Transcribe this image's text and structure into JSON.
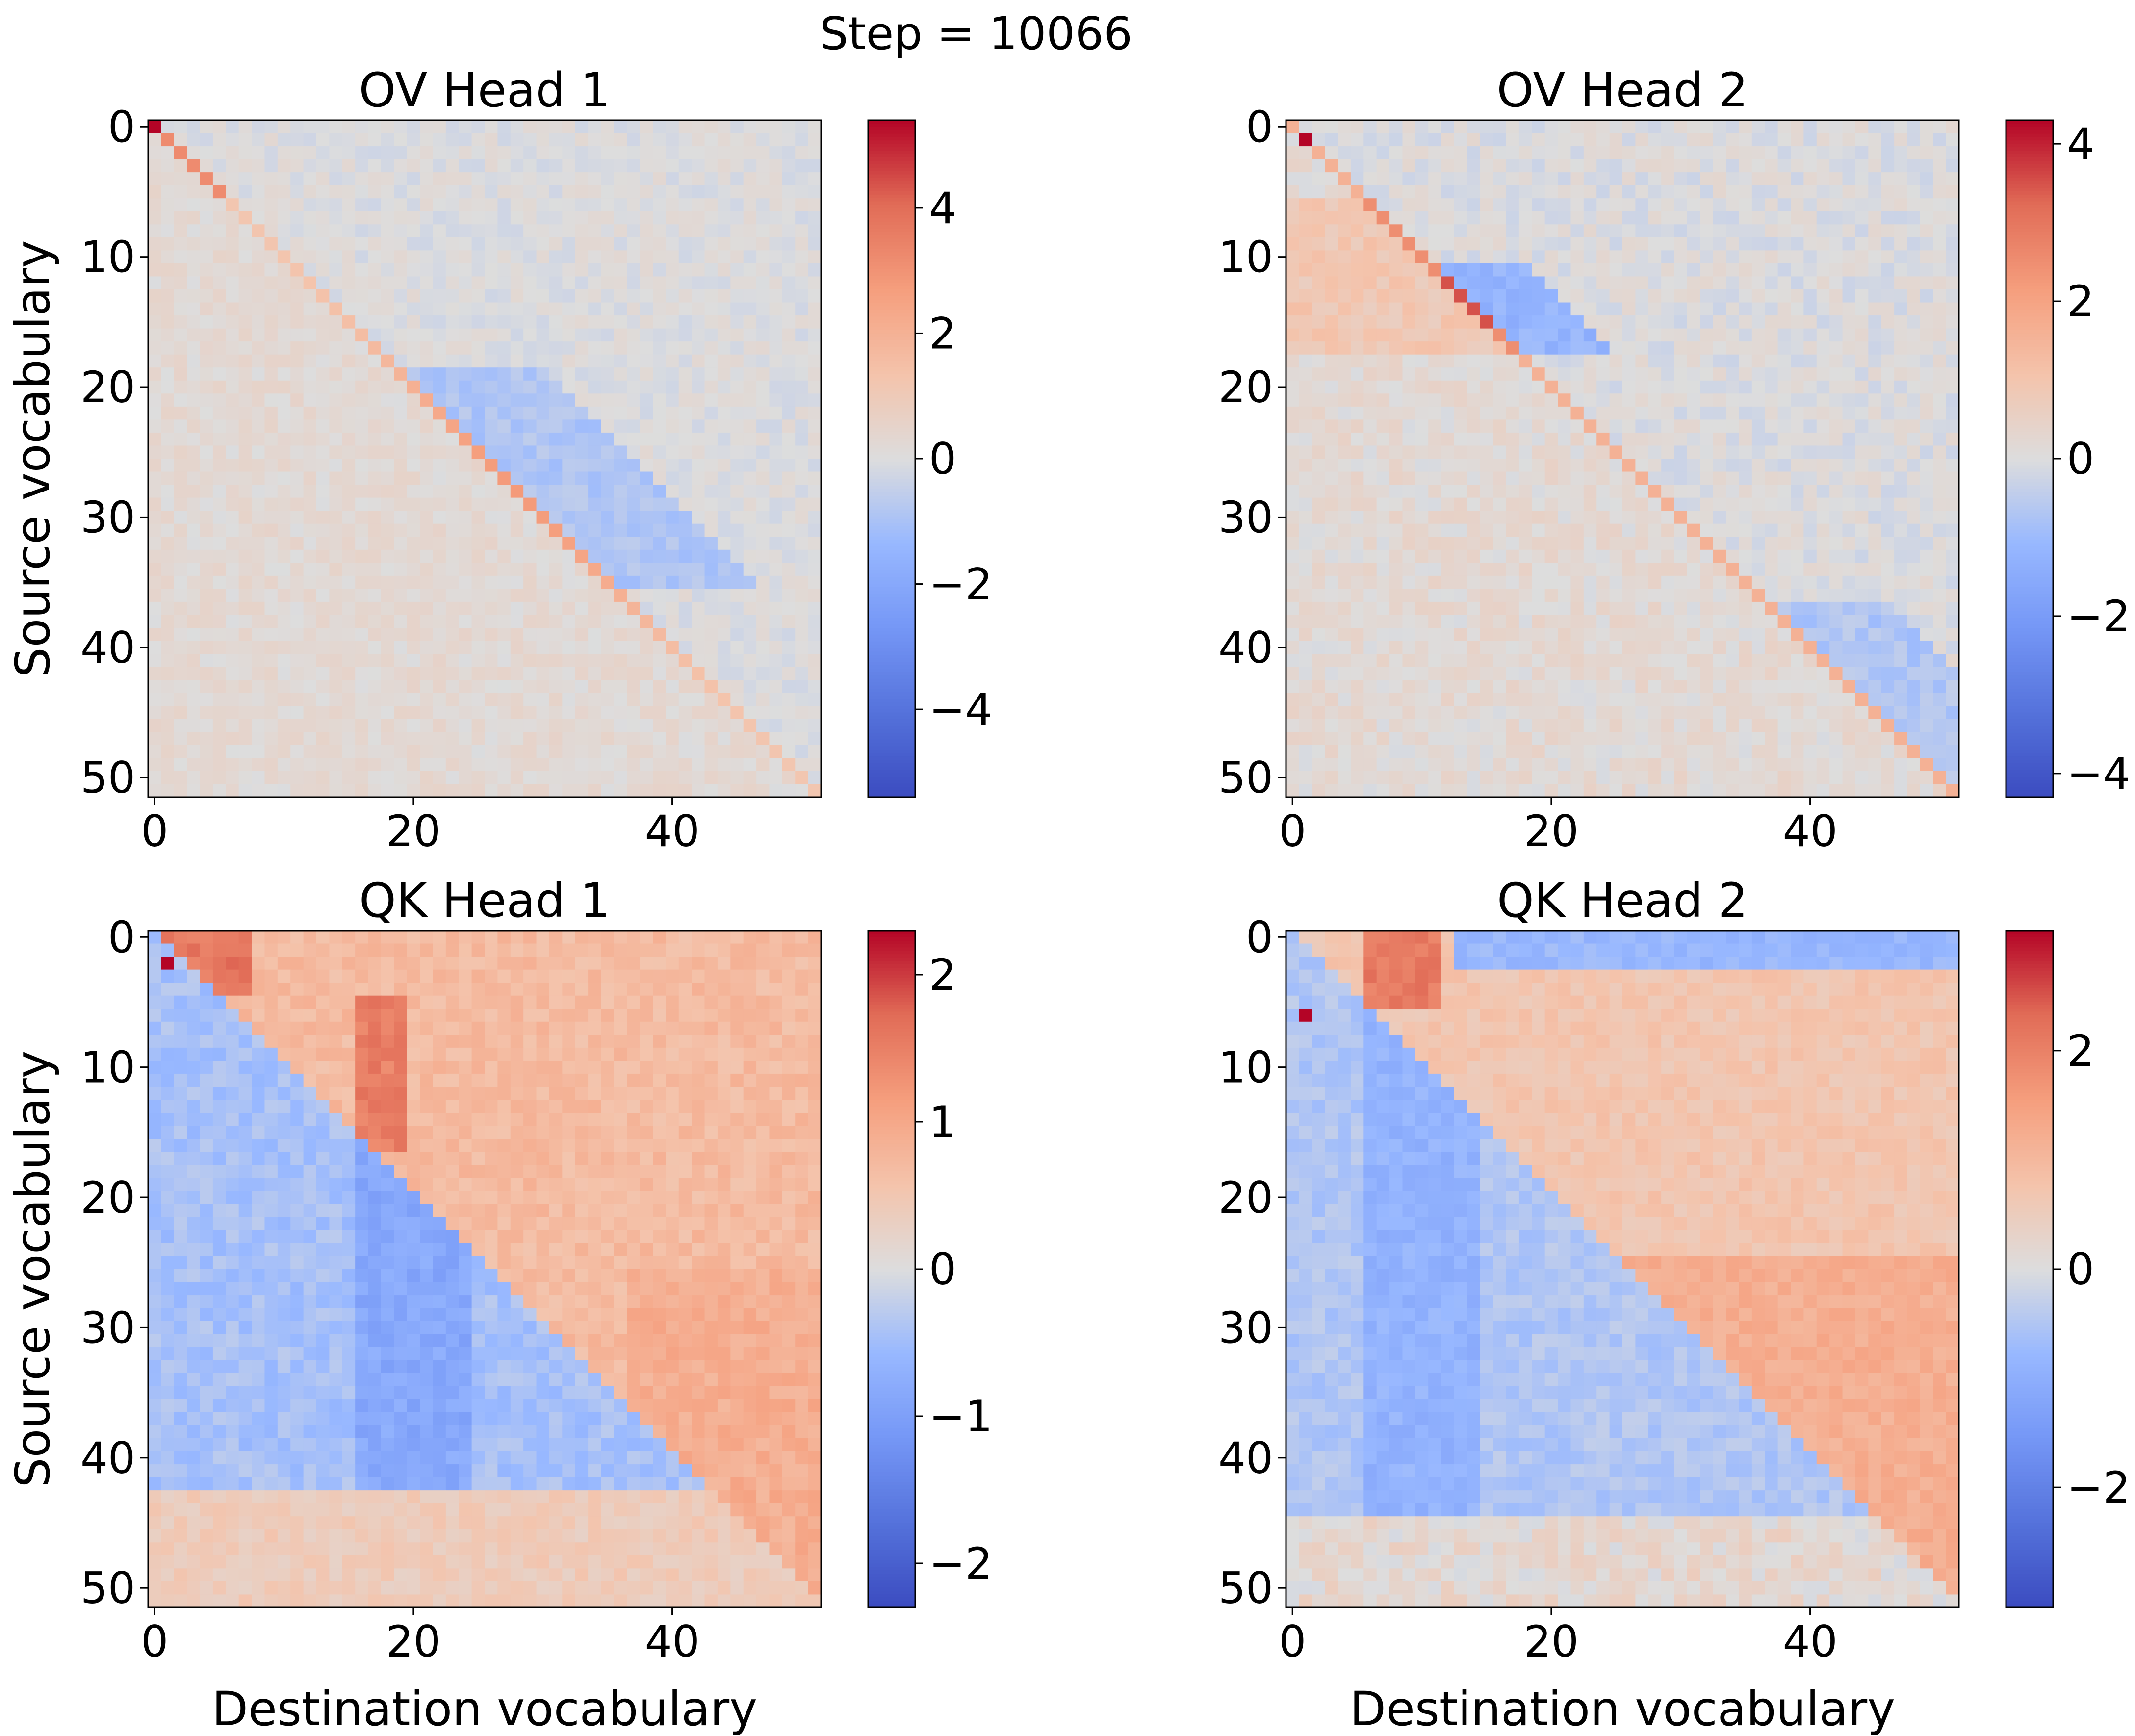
{
  "figure": {
    "suptitle": "Step = 10066"
  },
  "chart_data": [
    {
      "type": "heatmap",
      "title": "OV Head 1",
      "xlabel": "",
      "ylabel": "Source vocabulary",
      "x_ticks": [
        "0",
        "20",
        "40"
      ],
      "y_ticks": [
        "0",
        "10",
        "20",
        "30",
        "40",
        "50"
      ],
      "size": 52,
      "colormap": "coolwarm",
      "vmin": -5.4,
      "vmax": 5.4,
      "colorbar_ticks": [
        {
          "value": 4,
          "label": "4"
        },
        {
          "value": 2,
          "label": "2"
        },
        {
          "value": 0,
          "label": "0"
        },
        {
          "value": -2,
          "label": "−2"
        },
        {
          "value": -4,
          "label": "−4"
        }
      ],
      "pattern": "diagonal",
      "bright_cells": [
        [
          0,
          0,
          5.4
        ]
      ],
      "noise_seed": 11
    },
    {
      "type": "heatmap",
      "title": "OV Head 2",
      "xlabel": "",
      "ylabel": "",
      "x_ticks": [
        "0",
        "20",
        "40"
      ],
      "y_ticks": [
        "0",
        "10",
        "20",
        "30",
        "40",
        "50"
      ],
      "size": 52,
      "colormap": "coolwarm",
      "vmin": -4.3,
      "vmax": 4.3,
      "colorbar_ticks": [
        {
          "value": 4,
          "label": "4"
        },
        {
          "value": 2,
          "label": "2"
        },
        {
          "value": 0,
          "label": "0"
        },
        {
          "value": -2,
          "label": "−2"
        },
        {
          "value": -4,
          "label": "−4"
        }
      ],
      "pattern": "diagonal",
      "bright_cells": [
        [
          1,
          1,
          4.3
        ]
      ],
      "noise_seed": 23
    },
    {
      "type": "heatmap",
      "title": "QK Head 1",
      "xlabel": "Destination vocabulary",
      "ylabel": "Source vocabulary",
      "x_ticks": [
        "0",
        "20",
        "40"
      ],
      "y_ticks": [
        "0",
        "10",
        "20",
        "30",
        "40",
        "50"
      ],
      "size": 52,
      "colormap": "coolwarm",
      "vmin": -2.3,
      "vmax": 2.3,
      "colorbar_ticks": [
        {
          "value": 2,
          "label": "2"
        },
        {
          "value": 1,
          "label": "1"
        },
        {
          "value": 0,
          "label": "0"
        },
        {
          "value": -1,
          "label": "−1"
        },
        {
          "value": -2,
          "label": "−2"
        }
      ],
      "pattern": "upper",
      "bright_cells": [
        [
          2,
          1,
          2.3
        ]
      ],
      "noise_seed": 37
    },
    {
      "type": "heatmap",
      "title": "QK Head 2",
      "xlabel": "Destination vocabulary",
      "ylabel": "",
      "x_ticks": [
        "0",
        "20",
        "40"
      ],
      "y_ticks": [
        "0",
        "10",
        "20",
        "30",
        "40",
        "50"
      ],
      "size": 52,
      "colormap": "coolwarm",
      "vmin": -3.1,
      "vmax": 3.1,
      "colorbar_ticks": [
        {
          "value": 2,
          "label": "2"
        },
        {
          "value": 0,
          "label": "0"
        },
        {
          "value": -2,
          "label": "−2"
        }
      ],
      "pattern": "upper",
      "bright_cells": [
        [
          6,
          1,
          3.1
        ]
      ],
      "noise_seed": 53
    }
  ]
}
